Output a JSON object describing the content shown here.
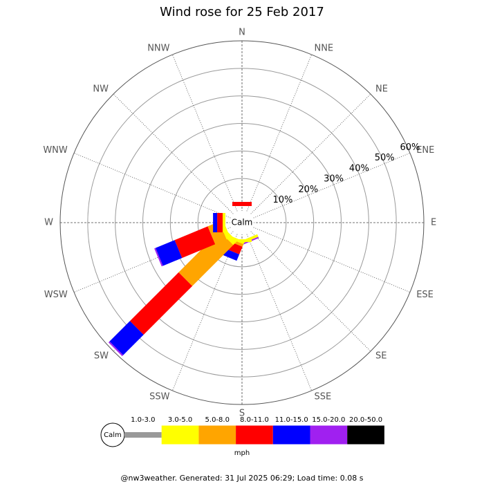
{
  "chart_data": {
    "type": "wind_rose",
    "title": "Wind rose for 25 Feb 2017",
    "directions": [
      "N",
      "NNE",
      "NE",
      "ENE",
      "E",
      "ESE",
      "SE",
      "SSE",
      "S",
      "SSW",
      "SW",
      "WSW",
      "W",
      "WNW",
      "NW",
      "NNW"
    ],
    "calm_label": "Calm",
    "rlim": [
      0,
      60
    ],
    "rticks": [
      {
        "value": 10,
        "label": "10%"
      },
      {
        "value": 20,
        "label": "20%"
      },
      {
        "value": 30,
        "label": "30%"
      },
      {
        "value": 40,
        "label": "40%"
      },
      {
        "value": 50,
        "label": "50%"
      },
      {
        "value": 60,
        "label": "60%"
      }
    ],
    "series": [
      {
        "name": "1.0-3.0",
        "color": "#999999",
        "values": [
          0,
          0,
          0,
          0,
          0,
          0,
          0,
          0,
          0,
          0,
          0,
          0,
          0,
          0,
          0,
          0
        ]
      },
      {
        "name": "3.0-5.0",
        "color": "#ffff00",
        "values": [
          0,
          0,
          0,
          0,
          0,
          0,
          0,
          1,
          1,
          1,
          2,
          1.5,
          1,
          0,
          0,
          0
        ]
      },
      {
        "name": "5.0-8.0",
        "color": "#ffa500",
        "values": [
          0,
          0,
          0,
          0,
          0,
          0,
          0,
          0,
          0,
          1,
          21,
          4.5,
          0,
          0,
          0,
          0
        ]
      },
      {
        "name": "8.0-11.0",
        "color": "#ff0000",
        "values": [
          1.5,
          0,
          0,
          0,
          0,
          0,
          0,
          0,
          0,
          3,
          25,
          13,
          2,
          0,
          0,
          0
        ]
      },
      {
        "name": "11.0-15.0",
        "color": "#0000ff",
        "values": [
          0,
          0,
          0,
          0,
          0,
          0,
          0,
          0,
          0,
          2.5,
          10.5,
          7.5,
          1.5,
          0,
          0,
          0
        ]
      },
      {
        "name": "15.0-20.0",
        "color": "#a020f0",
        "values": [
          0,
          0,
          0,
          0,
          0,
          0,
          0,
          0.5,
          0,
          0,
          0.5,
          0.5,
          0,
          0,
          0,
          0
        ]
      },
      {
        "name": "20.0-50.0",
        "color": "#000000",
        "values": [
          0,
          0,
          0,
          0,
          0,
          0,
          0,
          0,
          0,
          0,
          0,
          0,
          0,
          0,
          0,
          0
        ]
      }
    ],
    "unit": "mph",
    "footer": "@nw3weather. Generated: 31 Jul 2025 06:29; Load time: 0.08 s"
  }
}
